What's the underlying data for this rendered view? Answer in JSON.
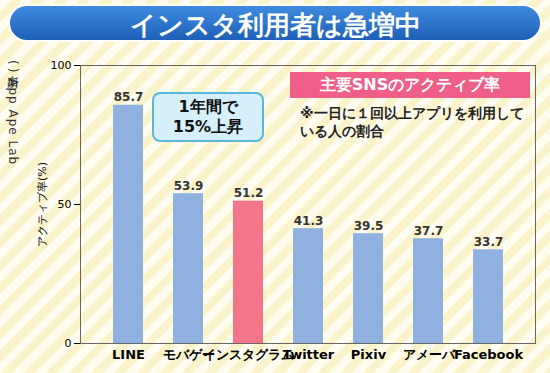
{
  "chart_data": {
    "type": "bar",
    "title": "インスタ利用者は急増中",
    "subtitle": "主要SNSのアクティブ率",
    "source": "(出所) App Ape Lab",
    "annotations": [
      "1年間で15%上昇",
      "※一日に１回以上アプリを利用している人の割合"
    ],
    "y_label": "アクティブ率(%)",
    "categories": [
      "LINE",
      "モバゲー",
      "インスタグラム",
      "Twitter",
      "Pixiv",
      "アメーバ",
      "Facebook"
    ],
    "values": [
      85.7,
      53.9,
      51.2,
      41.3,
      39.5,
      37.7,
      33.7
    ],
    "colors": [
      "#8fb1e0",
      "#8fb1e0",
      "#f2758a",
      "#8fb1e0",
      "#8fb1e0",
      "#8fb1e0",
      "#8fb1e0"
    ],
    "ylim": [
      0,
      100
    ],
    "yticks": [
      0,
      50,
      100
    ],
    "grid": false,
    "data_labels": true
  }
}
